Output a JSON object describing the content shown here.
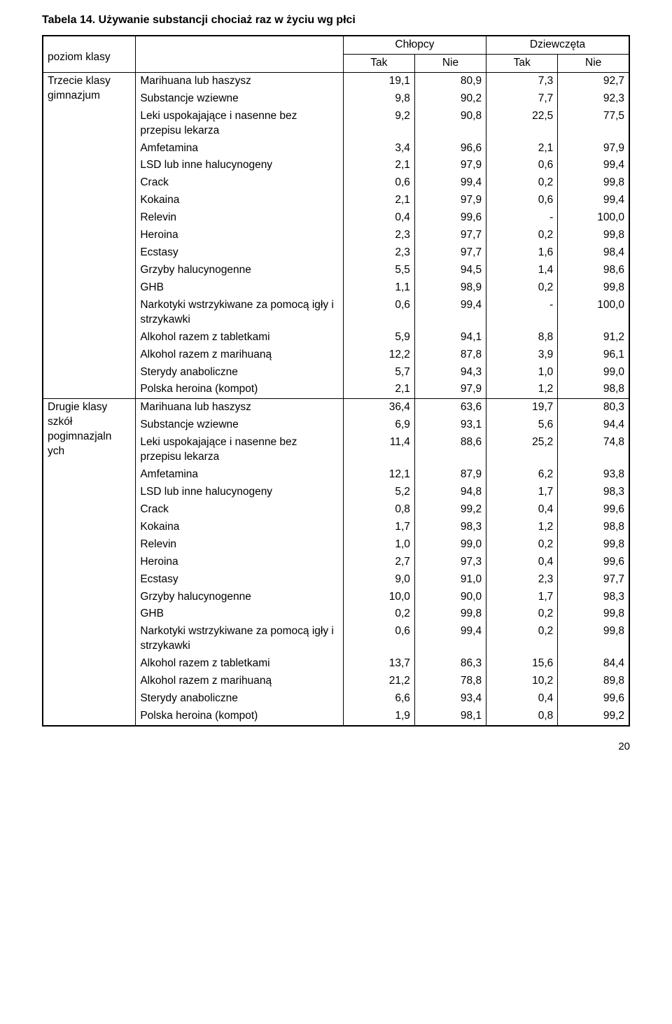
{
  "title": "Tabela 14. Używanie substancji chociaż raz w życiu wg płci",
  "header": {
    "row_label": "poziom klasy",
    "group1": "Chłopcy",
    "group2": "Dziewczęta",
    "col1": "Tak",
    "col2": "Nie",
    "col3": "Tak",
    "col4": "Nie"
  },
  "section1": {
    "label": "Trzecie klasy gimnazjum",
    "rows": [
      {
        "name": "Marihuana lub haszysz",
        "v": [
          "19,1",
          "80,9",
          "7,3",
          "92,7"
        ]
      },
      {
        "name": "Substancje wziewne",
        "v": [
          "9,8",
          "90,2",
          "7,7",
          "92,3"
        ]
      },
      {
        "name": "Leki uspokajające i nasenne bez przepisu lekarza",
        "v": [
          "9,2",
          "90,8",
          "22,5",
          "77,5"
        ]
      },
      {
        "name": "Amfetamina",
        "v": [
          "3,4",
          "96,6",
          "2,1",
          "97,9"
        ]
      },
      {
        "name": "LSD lub inne halucynogeny",
        "v": [
          "2,1",
          "97,9",
          "0,6",
          "99,4"
        ]
      },
      {
        "name": "Crack",
        "v": [
          "0,6",
          "99,4",
          "0,2",
          "99,8"
        ]
      },
      {
        "name": "Kokaina",
        "v": [
          "2,1",
          "97,9",
          "0,6",
          "99,4"
        ]
      },
      {
        "name": "Relevin",
        "v": [
          "0,4",
          "99,6",
          "-",
          "100,0"
        ]
      },
      {
        "name": "Heroina",
        "v": [
          "2,3",
          "97,7",
          "0,2",
          "99,8"
        ]
      },
      {
        "name": "Ecstasy",
        "v": [
          "2,3",
          "97,7",
          "1,6",
          "98,4"
        ]
      },
      {
        "name": "Grzyby halucynogenne",
        "v": [
          "5,5",
          "94,5",
          "1,4",
          "98,6"
        ]
      },
      {
        "name": "GHB",
        "v": [
          "1,1",
          "98,9",
          "0,2",
          "99,8"
        ]
      },
      {
        "name": "Narkotyki wstrzykiwane za pomocą igły i strzykawki",
        "v": [
          "0,6",
          "99,4",
          "-",
          "100,0"
        ]
      },
      {
        "name": "Alkohol razem z tabletkami",
        "v": [
          "5,9",
          "94,1",
          "8,8",
          "91,2"
        ]
      },
      {
        "name": "Alkohol razem z marihuaną",
        "v": [
          "12,2",
          "87,8",
          "3,9",
          "96,1"
        ]
      },
      {
        "name": "Sterydy anaboliczne",
        "v": [
          "5,7",
          "94,3",
          "1,0",
          "99,0"
        ]
      },
      {
        "name": "Polska heroina (kompot)",
        "v": [
          "2,1",
          "97,9",
          "1,2",
          "98,8"
        ]
      }
    ]
  },
  "section2": {
    "label": "Drugie klasy szkół pogimnazjaln ych",
    "rows": [
      {
        "name": "Marihuana lub haszysz",
        "v": [
          "36,4",
          "63,6",
          "19,7",
          "80,3"
        ]
      },
      {
        "name": "Substancje wziewne",
        "v": [
          "6,9",
          "93,1",
          "5,6",
          "94,4"
        ]
      },
      {
        "name": "Leki uspokajające i nasenne bez przepisu lekarza",
        "v": [
          "11,4",
          "88,6",
          "25,2",
          "74,8"
        ]
      },
      {
        "name": "Amfetamina",
        "v": [
          "12,1",
          "87,9",
          "6,2",
          "93,8"
        ]
      },
      {
        "name": "LSD lub inne halucynogeny",
        "v": [
          "5,2",
          "94,8",
          "1,7",
          "98,3"
        ]
      },
      {
        "name": "Crack",
        "v": [
          "0,8",
          "99,2",
          "0,4",
          "99,6"
        ]
      },
      {
        "name": "Kokaina",
        "v": [
          "1,7",
          "98,3",
          "1,2",
          "98,8"
        ]
      },
      {
        "name": "Relevin",
        "v": [
          "1,0",
          "99,0",
          "0,2",
          "99,8"
        ]
      },
      {
        "name": "Heroina",
        "v": [
          "2,7",
          "97,3",
          "0,4",
          "99,6"
        ]
      },
      {
        "name": "Ecstasy",
        "v": [
          "9,0",
          "91,0",
          "2,3",
          "97,7"
        ]
      },
      {
        "name": "Grzyby halucynogenne",
        "v": [
          "10,0",
          "90,0",
          "1,7",
          "98,3"
        ]
      },
      {
        "name": "GHB",
        "v": [
          "0,2",
          "99,8",
          "0,2",
          "99,8"
        ]
      },
      {
        "name": "Narkotyki wstrzykiwane za pomocą igły i strzykawki",
        "v": [
          "0,6",
          "99,4",
          "0,2",
          "99,8"
        ]
      },
      {
        "name": "Alkohol razem z tabletkami",
        "v": [
          "13,7",
          "86,3",
          "15,6",
          "84,4"
        ]
      },
      {
        "name": "Alkohol razem z marihuaną",
        "v": [
          "21,2",
          "78,8",
          "10,2",
          "89,8"
        ]
      },
      {
        "name": "Sterydy anaboliczne",
        "v": [
          "6,6",
          "93,4",
          "0,4",
          "99,6"
        ]
      },
      {
        "name": "Polska heroina (kompot)",
        "v": [
          "1,9",
          "98,1",
          "0,8",
          "99,2"
        ]
      }
    ]
  },
  "page_number": "20",
  "style": {
    "background_color": "#ffffff",
    "text_color": "#000000",
    "border_color": "#000000",
    "font_family": "Arial",
    "title_fontsize": 16,
    "body_fontsize": 15.5,
    "outer_border_width": 2,
    "inner_border_width": 1
  }
}
